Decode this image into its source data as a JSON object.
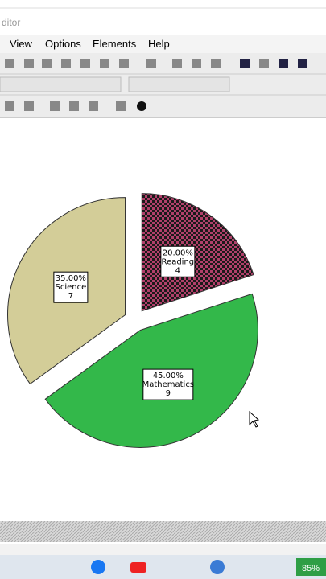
{
  "window": {
    "title": "ditor",
    "menu": [
      "View",
      "Options",
      "Elements",
      "Help"
    ]
  },
  "chart_data": {
    "type": "pie",
    "categories": [
      "Reading",
      "Mathematics",
      "Science"
    ],
    "values": [
      20,
      45,
      35
    ],
    "value_labels": [
      "20.00%",
      "45.00%",
      "35.00%"
    ],
    "counts": [
      4,
      9,
      7
    ],
    "colors": [
      "#b0406a",
      "#33b84a",
      "#d3cd98"
    ],
    "patterns": [
      "checker",
      "solid",
      "solid"
    ],
    "exploded": true
  },
  "taskbar": {
    "battery": "85%"
  }
}
